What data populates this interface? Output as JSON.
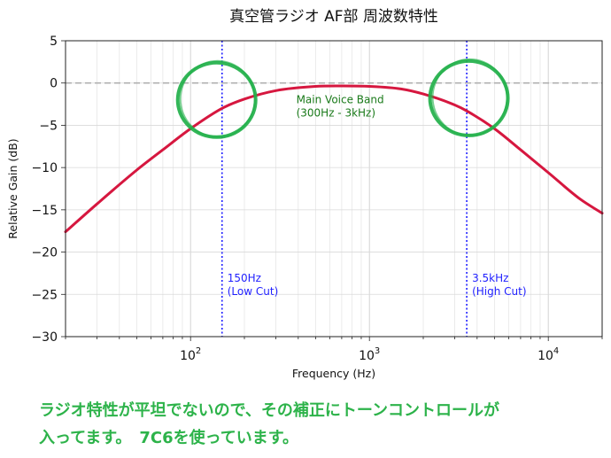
{
  "chart_data": {
    "type": "line",
    "title": "真空管ラジオ AF部 周波数特性",
    "xlabel": "Frequency (Hz)",
    "ylabel": "Relative Gain (dB)",
    "xscale": "log",
    "xlim": [
      20,
      20000
    ],
    "ylim": [
      -30,
      5
    ],
    "grid": true,
    "x_ticks": [
      {
        "value": 100,
        "base": "10",
        "exp": "2"
      },
      {
        "value": 1000,
        "base": "10",
        "exp": "3"
      },
      {
        "value": 10000,
        "base": "10",
        "exp": "4"
      }
    ],
    "y_ticks": [
      {
        "value": 5,
        "label": "5"
      },
      {
        "value": 0,
        "label": "0"
      },
      {
        "value": -5,
        "label": "−5"
      },
      {
        "value": -10,
        "label": "−10"
      },
      {
        "value": -15,
        "label": "−15"
      },
      {
        "value": -20,
        "label": "−20"
      },
      {
        "value": -25,
        "label": "−25"
      },
      {
        "value": -30,
        "label": "−30"
      }
    ],
    "series": [
      {
        "color": "#d6173f",
        "x": [
          20,
          30,
          50,
          70,
          100,
          150,
          200,
          300,
          500,
          700,
          1000,
          1500,
          2000,
          3000,
          3500,
          5000,
          7000,
          10000,
          15000,
          20000
        ],
        "y": [
          -17.6,
          -14.3,
          -10.3,
          -7.9,
          -5.4,
          -3.0,
          -1.9,
          -0.9,
          -0.4,
          -0.35,
          -0.4,
          -0.7,
          -1.3,
          -2.6,
          -3.3,
          -5.4,
          -7.9,
          -10.6,
          -13.7,
          -15.4
        ]
      }
    ],
    "reference_lines": [
      {
        "orientation": "horizontal",
        "value": 0,
        "style": "dashed",
        "color": "#b0b0b0"
      },
      {
        "orientation": "vertical",
        "value": 150,
        "style": "dotted",
        "color": "#1f1fff",
        "label_lines": [
          "150Hz",
          "(Low Cut)"
        ],
        "label_y": -23.5
      },
      {
        "orientation": "vertical",
        "value": 3500,
        "style": "dotted",
        "color": "#1f1fff",
        "label_lines": [
          "3.5kHz",
          "(High Cut)"
        ],
        "label_y": -23.5
      }
    ],
    "annotations": [
      {
        "text_lines": [
          "Main Voice Band",
          "(300Hz - 3kHz)"
        ],
        "x": 390,
        "y": -2.4,
        "color": "#1a7a1a"
      }
    ],
    "highlight_circles": [
      {
        "cx": 140,
        "cy": -2.0,
        "color": "#22b04a"
      },
      {
        "cx": 3600,
        "cy": -1.8,
        "color": "#22b04a"
      }
    ]
  },
  "caption": {
    "lines": [
      "ラジオ特性が平坦でないので、その補正にトーンコントロールが",
      "入ってます。　7C6を使っています。"
    ]
  }
}
